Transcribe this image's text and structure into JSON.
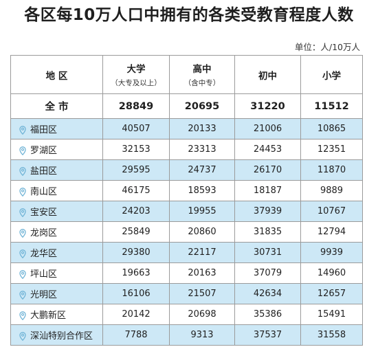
{
  "title": "各区每10万人口中拥有的各类受教育程度人数",
  "unit": "单位：人/10万人",
  "headers": {
    "region": "地 区",
    "college": "大学",
    "college_sub": "（大专及以上）",
    "high": "高中",
    "high_sub": "（含中专）",
    "middle": "初中",
    "primary": "小学"
  },
  "total": {
    "name": "全 市",
    "values": [
      "28849",
      "20695",
      "31220",
      "11512"
    ]
  },
  "districts": [
    {
      "name": "福田区",
      "values": [
        "40507",
        "20133",
        "21006",
        "10865"
      ]
    },
    {
      "name": "罗湖区",
      "values": [
        "32153",
        "23313",
        "24453",
        "12351"
      ]
    },
    {
      "name": "盐田区",
      "values": [
        "29595",
        "24737",
        "26170",
        "11870"
      ]
    },
    {
      "name": "南山区",
      "values": [
        "46175",
        "18593",
        "18187",
        "9889"
      ]
    },
    {
      "name": "宝安区",
      "values": [
        "24203",
        "19955",
        "37939",
        "10767"
      ]
    },
    {
      "name": "龙岗区",
      "values": [
        "25849",
        "20860",
        "31835",
        "12794"
      ]
    },
    {
      "name": "龙华区",
      "values": [
        "29380",
        "22117",
        "30731",
        "9939"
      ]
    },
    {
      "name": "坪山区",
      "values": [
        "19663",
        "20163",
        "37079",
        "14960"
      ]
    },
    {
      "name": "光明区",
      "values": [
        "16106",
        "21507",
        "42634",
        "12657"
      ]
    },
    {
      "name": "大鹏新区",
      "values": [
        "20142",
        "20698",
        "35386",
        "15491"
      ]
    },
    {
      "name": "深汕特别合作区",
      "values": [
        "7788",
        "9313",
        "37537",
        "31558"
      ]
    }
  ],
  "colors": {
    "stripe": "#cde8f6",
    "pin": "#6fb3d6",
    "border": "#9a9a9a"
  }
}
